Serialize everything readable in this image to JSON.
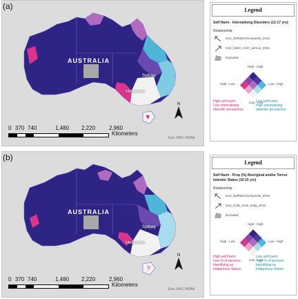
{
  "colors": {
    "ocean": "#dcdcdc",
    "high_high": "#2e2484",
    "high_low": "#d9348e",
    "low_high": "#4fb6d8",
    "low_low": "#f2f2f2",
    "mid_pink": "#b06bc0",
    "mid_purple": "#6a4ab0",
    "excluded": "#a8a8a8"
  },
  "panels": [
    {
      "label": "(a)",
      "country_label": "AUSTRALIA",
      "cities": [
        "Sydney",
        "Melbourne"
      ],
      "north_label": "N",
      "scale": {
        "ticks": [
          "0",
          "370",
          "740",
          "1,480",
          "2,220",
          "2,960"
        ],
        "unit": "Kilometers"
      },
      "credits": "Esri, FAO, NOAA",
      "legend": {
        "title": "Legend",
        "heading": "Self Harm - Internalising Disorders (12-17 yrs)",
        "relationship_label": "Relationship",
        "items": [
          {
            "icon": "arrow-up-left-icon",
            "label": "SA2_SelfHarmComposite_2019"
          },
          {
            "icon": "arrow-up-right-icon",
            "label": "SA2_Intern_1217_person_2016"
          },
          {
            "icon": "excluded-swatch-icon",
            "label": "Excluded"
          }
        ],
        "corners": {
          "top": "High - High",
          "left": "High - Low",
          "right": "Low - High",
          "bottom": "Low - Low"
        },
        "left_note": [
          "High self-harm",
          "Low internalising",
          "disorder prevalence"
        ],
        "right_note": [
          "Low self-harm",
          "High internalising",
          "disorder prevalence"
        ]
      }
    },
    {
      "label": "(b)",
      "country_label": "AUSTRALIA",
      "cities": [
        "Sydney",
        "Melbourne"
      ],
      "north_label": "N",
      "scale": {
        "ticks": [
          "0",
          "370",
          "740",
          "1,480",
          "2,220",
          "2,960"
        ],
        "unit": "Kilometers"
      },
      "credits": "Esri, FAO, NOAA",
      "legend": {
        "title": "Legend",
        "heading": "Self Harm - Prop (%) Aboriginal and/or Torres Islander Status (10-15 yrs)",
        "relationship_label": "Relationship",
        "items": [
          {
            "icon": "arrow-up-left-icon",
            "label": "SA2_SelfHarmComposite_2019"
          },
          {
            "icon": "arrow-up-right-icon",
            "label": "SA2_COB_1015_Indig_2016"
          },
          {
            "icon": "excluded-swatch-icon",
            "label": "Excluded"
          }
        ],
        "corners": {
          "top": "High - High",
          "left": "High - Low",
          "right": "Low - High",
          "bottom": "Low - Low"
        },
        "left_note": [
          "High self-harm",
          "Low % of persons",
          "identifying as",
          "Indigenous Status"
        ],
        "right_note": [
          "Low self-harm",
          "High % of persons",
          "identifying as",
          "Indigenous Status"
        ]
      }
    }
  ]
}
